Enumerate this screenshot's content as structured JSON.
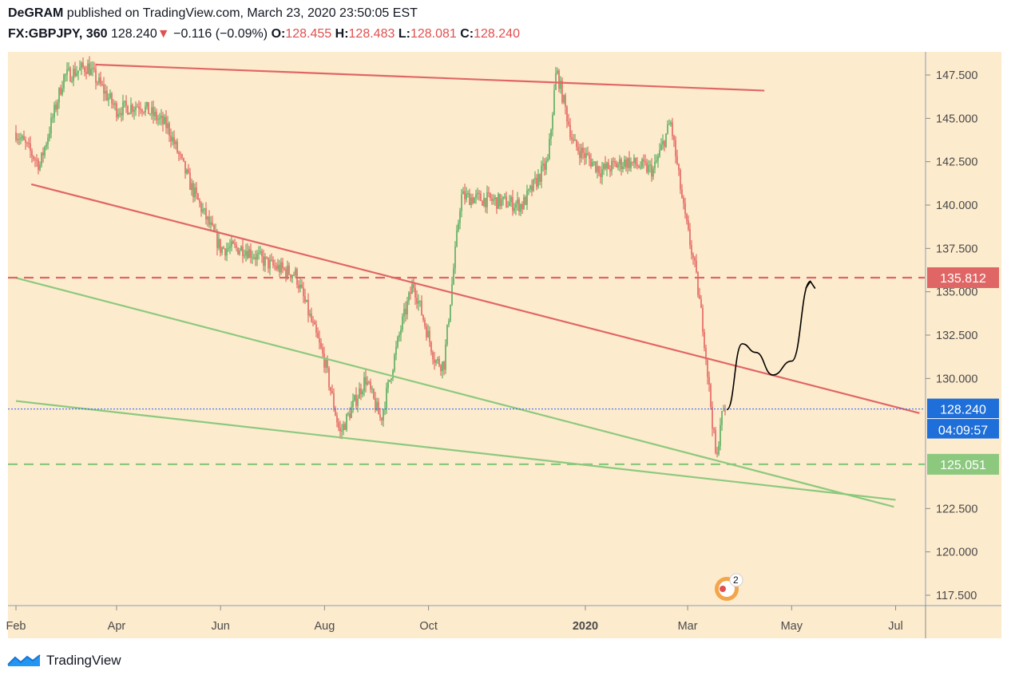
{
  "header": {
    "author": "DeGRAM",
    "published_text": "published on TradingView.com, March 23, 2020 23:50:05 EST",
    "symbol": "FX:GBPJPY, 360",
    "last": "128.240",
    "change_arrow": "▼",
    "change": "−0.116 (−0.09%)",
    "o_label": "O:",
    "o_value": "128.455",
    "h_label": "H:",
    "h_value": "128.483",
    "l_label": "L:",
    "l_value": "128.081",
    "c_label": "C:",
    "c_value": "128.240"
  },
  "footer": {
    "brand": "TradingView",
    "icon": "tradingview-logo-icon"
  },
  "colors": {
    "background": "#fdebcd",
    "up": "#3fa34d",
    "down": "#e0504f",
    "resistance": "#e06666",
    "support": "#8cc97e",
    "price_line": "#2962ff"
  },
  "chart_data": {
    "type": "candlestick",
    "symbol": "GBPJPY",
    "timeframe": "360",
    "x_ticks": [
      "Feb",
      "Apr",
      "Jun",
      "Aug",
      "Oct",
      "2020",
      "Mar",
      "May",
      "Jul"
    ],
    "y_ticks": [
      "147.500",
      "145.000",
      "142.500",
      "140.000",
      "137.500",
      "135.000",
      "132.500",
      "130.000",
      "122.500",
      "120.000",
      "117.500"
    ],
    "ylim": [
      116.5,
      148.5
    ],
    "price_labels": [
      {
        "value": 135.812,
        "text": "135.812",
        "color": "#e06666"
      },
      {
        "value": 128.24,
        "text": "128.240",
        "sub": "04:09:57",
        "color": "#1e6fd9"
      },
      {
        "value": 125.051,
        "text": "125.051",
        "color": "#8cc97e"
      }
    ],
    "price_path": [
      [
        "2019-02-01",
        144.2
      ],
      [
        "2019-02-15",
        142.3
      ],
      [
        "2019-03-01",
        147.4
      ],
      [
        "2019-03-15",
        148.0
      ],
      [
        "2019-04-01",
        145.5
      ],
      [
        "2019-04-15",
        145.8
      ],
      [
        "2019-05-01",
        144.5
      ],
      [
        "2019-05-15",
        141.0
      ],
      [
        "2019-06-01",
        137.5
      ],
      [
        "2019-06-15",
        137.5
      ],
      [
        "2019-07-01",
        136.5
      ],
      [
        "2019-07-15",
        136.0
      ],
      [
        "2019-08-01",
        131.0
      ],
      [
        "2019-08-10",
        126.8
      ],
      [
        "2019-08-25",
        130.0
      ],
      [
        "2019-09-03",
        127.6
      ],
      [
        "2019-09-15",
        133.0
      ],
      [
        "2019-09-22",
        135.5
      ],
      [
        "2019-10-05",
        131.0
      ],
      [
        "2019-10-10",
        130.8
      ],
      [
        "2019-10-20",
        140.5
      ],
      [
        "2019-11-05",
        140.3
      ],
      [
        "2019-11-25",
        140.0
      ],
      [
        "2019-12-10",
        142.5
      ],
      [
        "2019-12-15",
        147.8
      ],
      [
        "2019-12-25",
        143.5
      ],
      [
        "2020-01-10",
        142.0
      ],
      [
        "2020-01-25",
        142.5
      ],
      [
        "2020-02-10",
        142.0
      ],
      [
        "2020-02-20",
        144.8
      ],
      [
        "2020-02-28",
        139.5
      ],
      [
        "2020-03-05",
        136.5
      ],
      [
        "2020-03-10",
        133.0
      ],
      [
        "2020-03-15",
        128.0
      ],
      [
        "2020-03-18",
        125.0
      ],
      [
        "2020-03-20",
        127.5
      ],
      [
        "2020-03-23",
        128.24
      ]
    ],
    "trendlines": [
      {
        "name": "upper-resistance",
        "color": "#e06666",
        "points": [
          [
            "2019-03-20",
            148.1
          ],
          [
            "2020-04-15",
            146.6
          ]
        ]
      },
      {
        "name": "descending-resistance",
        "color": "#e06666",
        "points": [
          [
            "2019-02-10",
            141.2
          ],
          [
            "2020-07-15",
            128.0
          ]
        ]
      },
      {
        "name": "upper-support",
        "color": "#8cc97e",
        "points": [
          [
            "2019-02-01",
            135.8
          ],
          [
            "2020-06-30",
            122.6
          ]
        ]
      },
      {
        "name": "lower-support",
        "color": "#8cc97e",
        "points": [
          [
            "2019-02-01",
            128.7
          ],
          [
            "2020-07-01",
            123.0
          ]
        ]
      }
    ],
    "horizontal_levels": [
      {
        "name": "resistance-level",
        "value": 135.812,
        "style": "dashed",
        "color": "#e06666"
      },
      {
        "name": "support-level",
        "value": 125.051,
        "style": "dashed",
        "color": "#8cc97e"
      },
      {
        "name": "last-price-line",
        "value": 128.24,
        "style": "dotted",
        "color": "#2962ff"
      }
    ],
    "projection": [
      [
        "2020-03-24",
        128.2
      ],
      [
        "2020-04-02",
        132.0
      ],
      [
        "2020-04-10",
        131.5
      ],
      [
        "2020-04-20",
        130.2
      ],
      [
        "2020-05-01",
        131.0
      ],
      [
        "2020-05-12",
        135.6
      ]
    ]
  }
}
